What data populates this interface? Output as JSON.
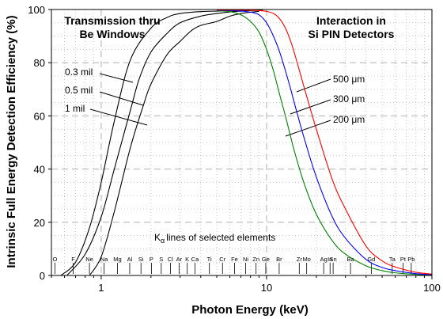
{
  "chart_data": {
    "type": "line",
    "xlabel": "Photon Energy (keV)",
    "ylabel": "Intrinsic Full Energy Detection Efficiency (%)",
    "x_scale": "log",
    "xlim": [
      0.5,
      100
    ],
    "ylim": [
      0,
      100
    ],
    "x_ticks": [
      "1",
      "10",
      "100"
    ],
    "y_ticks": [
      "0",
      "20",
      "40",
      "60",
      "80",
      "100"
    ],
    "grid": true,
    "annotations": {
      "be_title_line1": "Transmission thru",
      "be_title_line2": "Be Windows",
      "si_title_line1": "Interaction in",
      "si_title_line2": "Si PIN Detectors",
      "kalpha_note": "K lines of selected elements",
      "kalpha_symbol": "α",
      "label_03mil": "0.3 mil",
      "label_05mil": "0.5 mil",
      "label_1mil": "1 mil",
      "label_500um": "500 μm",
      "label_300um": "300 μm",
      "label_200um": "200 μm"
    },
    "series": [
      {
        "name": "0.3 mil",
        "color": "#000000",
        "x": [
          0.57,
          0.7,
          0.85,
          1.0,
          1.2,
          1.5,
          2.0,
          2.5,
          3.0,
          4.0,
          5.0,
          6.0,
          7.0,
          8.0,
          9.0,
          9.5
        ],
        "y": [
          0,
          5,
          18,
          35,
          58,
          81,
          93,
          97,
          98.5,
          99.2,
          99.4,
          99.5,
          99.6,
          99.7,
          99.8,
          99.8
        ]
      },
      {
        "name": "0.5 mil",
        "color": "#000000",
        "x": [
          0.62,
          0.8,
          1.0,
          1.2,
          1.5,
          1.7,
          2.0,
          2.5,
          3.0,
          4.0,
          5.0,
          6.0,
          7.0,
          8.0,
          9.0,
          9.5
        ],
        "y": [
          0,
          8,
          22,
          40,
          62,
          74,
          84,
          91,
          95,
          97.5,
          98.5,
          99.1,
          99.4,
          99.6,
          99.7,
          99.7
        ]
      },
      {
        "name": "1 mil",
        "color": "#000000",
        "x": [
          0.85,
          1.0,
          1.2,
          1.5,
          1.8,
          2.0,
          2.5,
          3.0,
          3.5,
          4.0,
          5.0,
          6.0,
          7.0,
          8.0,
          9.0
        ],
        "y": [
          0,
          7,
          24,
          48,
          64,
          72,
          83,
          88,
          92,
          94,
          95.5,
          97.5,
          98.5,
          99,
          99.3
        ]
      },
      {
        "name": "200 μm",
        "color": "#008000",
        "x": [
          5.0,
          6.0,
          7.0,
          8.0,
          9.0,
          10.0,
          11.0,
          12.0,
          13.0,
          14.0,
          15.0,
          17.0,
          20.0,
          25.0,
          30.0,
          40.0,
          50.0,
          60.0,
          80.0,
          100.0
        ],
        "y": [
          99.5,
          99.2,
          98,
          95.5,
          91.5,
          85,
          77,
          68,
          60,
          52,
          45,
          34,
          23,
          13,
          8,
          3.6,
          1.8,
          1,
          0.4,
          0.2
        ]
      },
      {
        "name": "300 μm",
        "color": "#0000ff",
        "x": [
          5.0,
          6.0,
          7.0,
          8.0,
          9.0,
          10.0,
          11.0,
          12.0,
          13.0,
          14.0,
          15.0,
          17.0,
          20.0,
          25.0,
          30.0,
          40.0,
          50.0,
          60.0,
          80.0,
          100.0
        ],
        "y": [
          99.7,
          99.6,
          99.4,
          99,
          98,
          95,
          90,
          84,
          77,
          70,
          63,
          51,
          37,
          22,
          14,
          6,
          3,
          1.8,
          0.7,
          0.3
        ]
      },
      {
        "name": "500 μm",
        "color": "#ff0000",
        "x": [
          5.0,
          6.0,
          7.0,
          8.0,
          9.0,
          10.0,
          11.0,
          12.0,
          13.0,
          14.0,
          15.0,
          17.0,
          20.0,
          25.0,
          30.0,
          40.0,
          50.0,
          60.0,
          80.0,
          100.0
        ],
        "y": [
          99.8,
          99.8,
          99.8,
          99.7,
          99.6,
          99.3,
          98.5,
          96.5,
          93,
          88,
          82,
          70,
          55,
          36,
          25,
          11,
          5.5,
          3.2,
          1.2,
          0.5
        ]
      }
    ],
    "elements": [
      {
        "symbol": "O",
        "energy": 0.525
      },
      {
        "symbol": "F",
        "energy": 0.677
      },
      {
        "symbol": "Ne",
        "energy": 0.849
      },
      {
        "symbol": "Na",
        "energy": 1.041
      },
      {
        "symbol": "Mg",
        "energy": 1.254
      },
      {
        "symbol": "Al",
        "energy": 1.487
      },
      {
        "symbol": "Si",
        "energy": 1.74
      },
      {
        "symbol": "P",
        "energy": 2.013
      },
      {
        "symbol": "S",
        "energy": 2.307
      },
      {
        "symbol": "Cl",
        "energy": 2.622
      },
      {
        "symbol": "Ar",
        "energy": 2.957
      },
      {
        "symbol": "K",
        "energy": 3.313
      },
      {
        "symbol": "Ca",
        "energy": 3.691
      },
      {
        "symbol": "Ti",
        "energy": 4.51
      },
      {
        "symbol": "Cr",
        "energy": 5.414
      },
      {
        "symbol": "Fe",
        "energy": 6.403
      },
      {
        "symbol": "Ni",
        "energy": 7.477
      },
      {
        "symbol": "Zn",
        "energy": 8.638
      },
      {
        "symbol": "Ge",
        "energy": 9.886
      },
      {
        "symbol": "Br",
        "energy": 11.92
      },
      {
        "symbol": "Zr",
        "energy": 15.77
      },
      {
        "symbol": "Mo",
        "energy": 17.48
      },
      {
        "symbol": "Ag",
        "energy": 22.16
      },
      {
        "symbol": "Sn",
        "energy": 25.27
      },
      {
        "symbol": "In",
        "energy": 24.21
      },
      {
        "symbol": "Ba",
        "energy": 32.19
      },
      {
        "symbol": "Gd",
        "energy": 42.99
      },
      {
        "symbol": "Ta",
        "energy": 57.53
      },
      {
        "symbol": "Pt",
        "energy": 66.83
      },
      {
        "symbol": "Pb",
        "energy": 74.97
      }
    ]
  }
}
